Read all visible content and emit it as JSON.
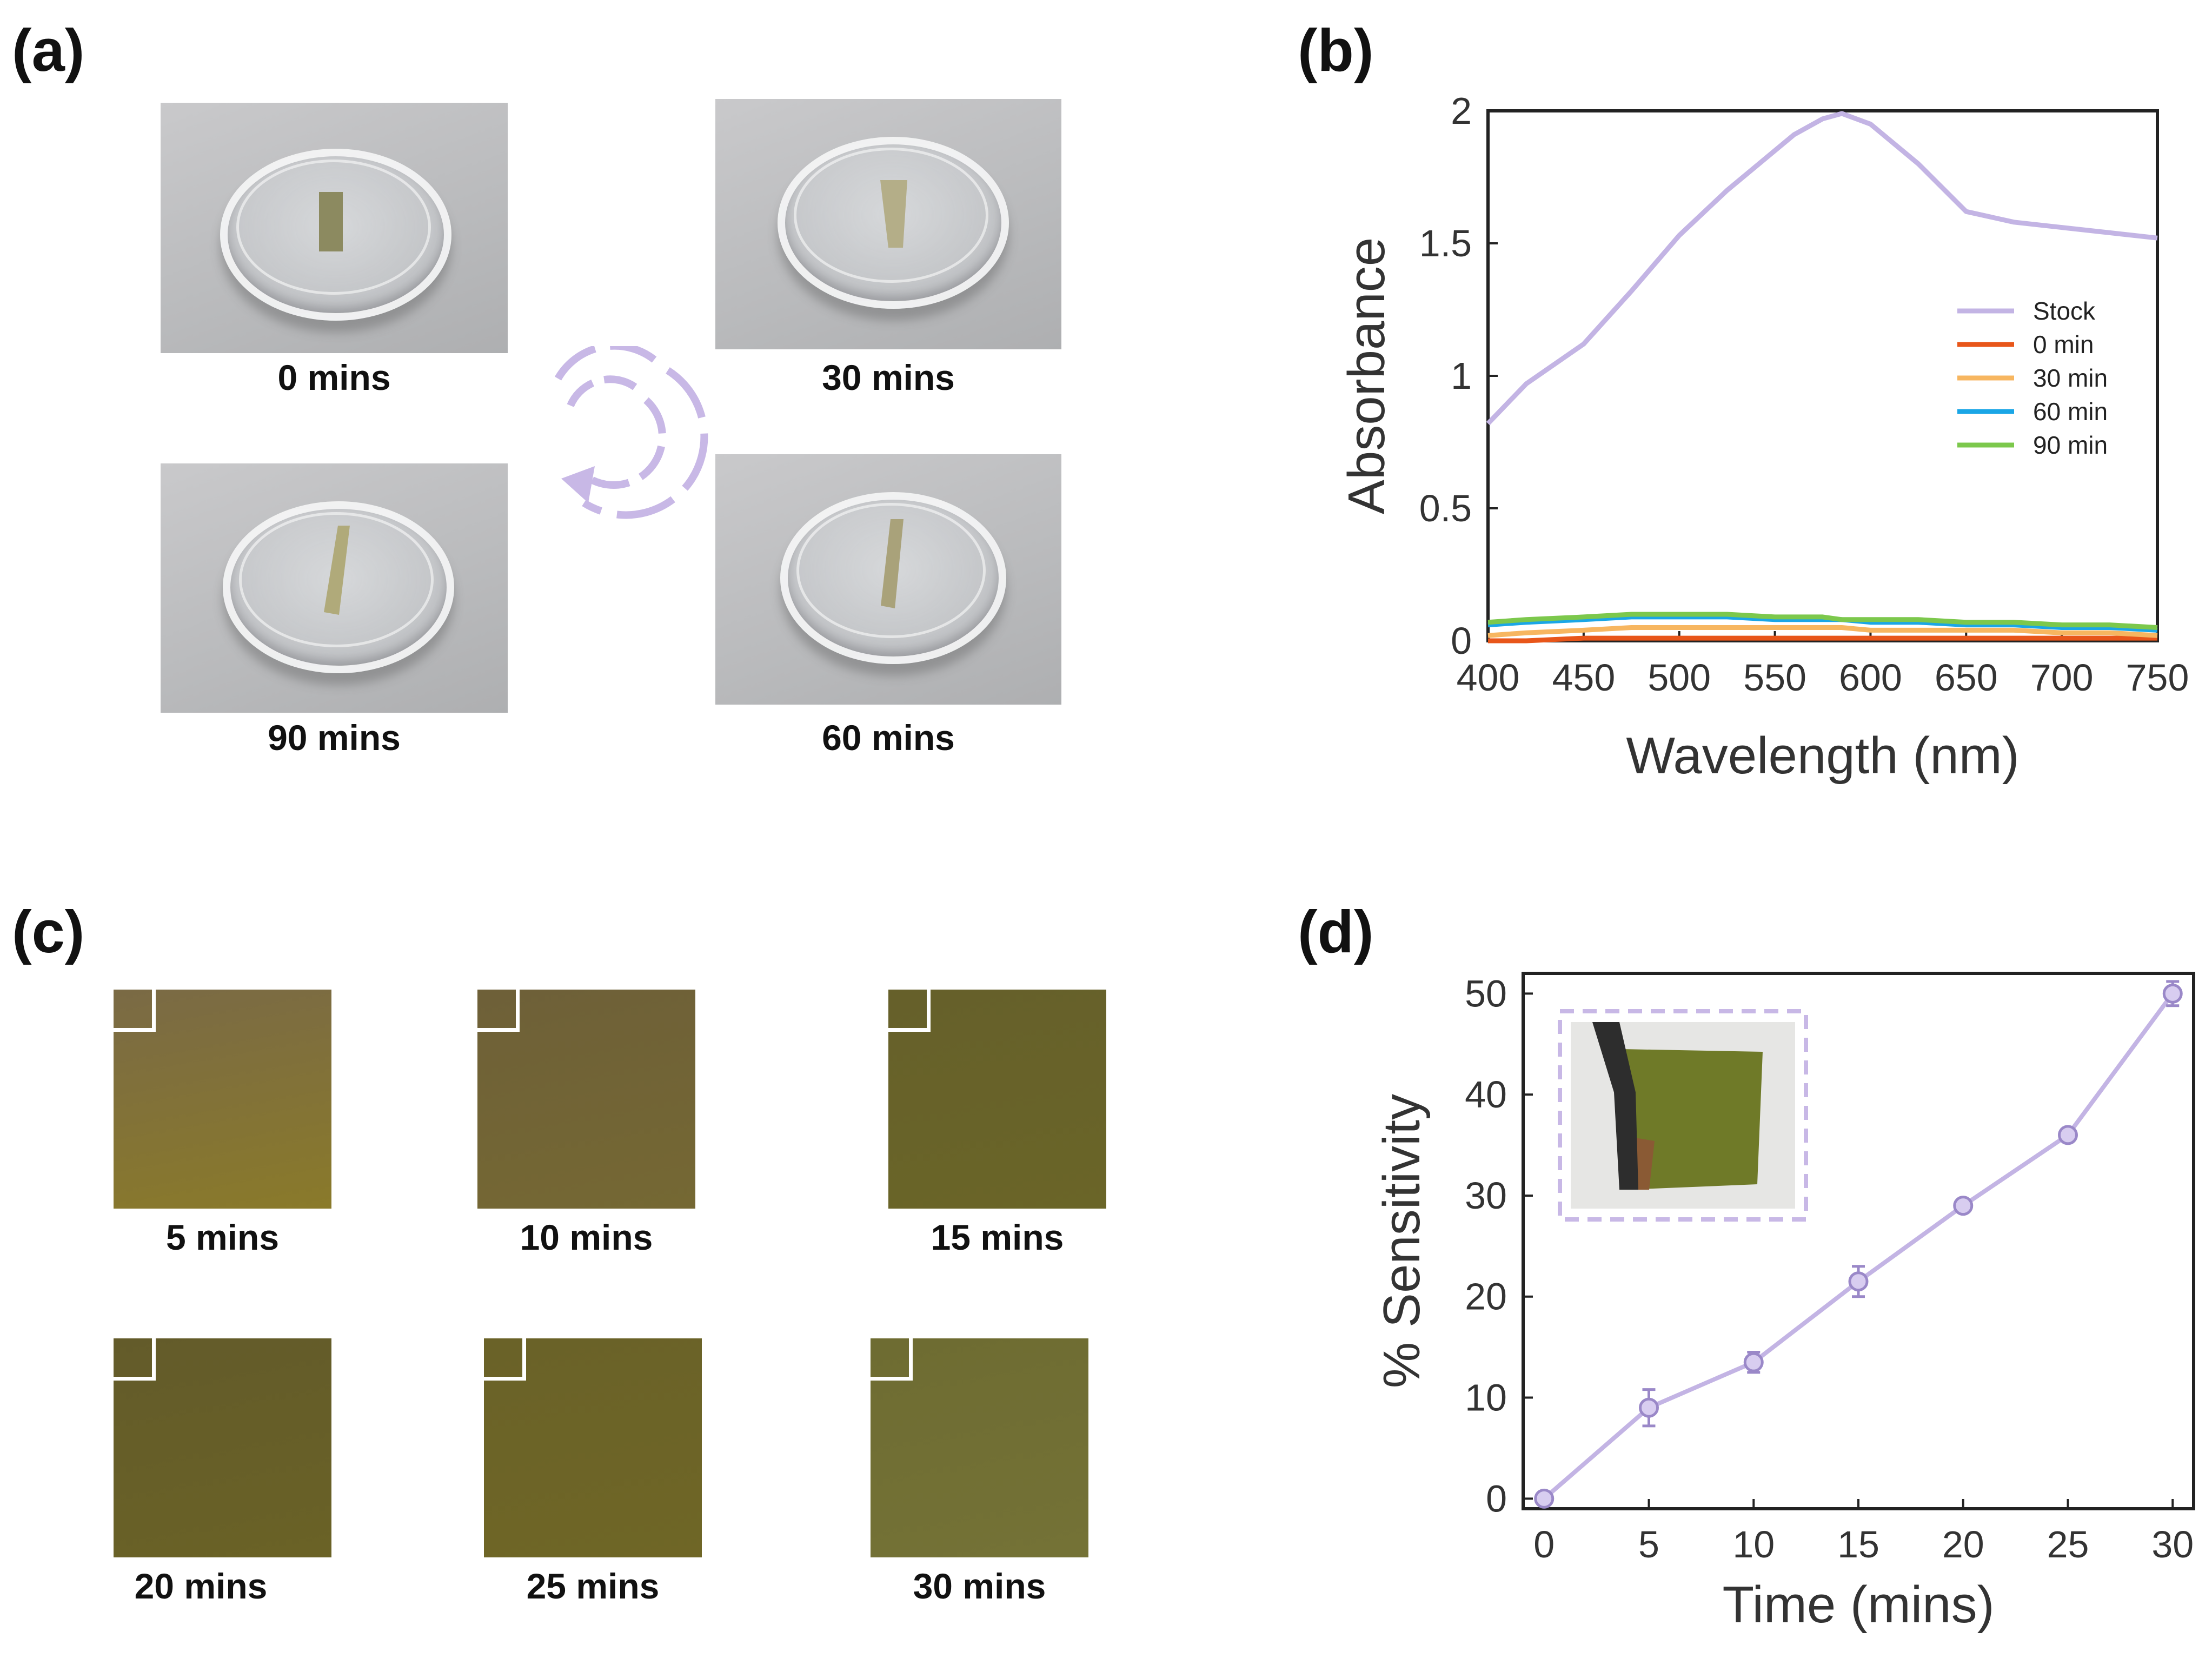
{
  "panels": {
    "a": "(a)",
    "b": "(b)",
    "c": "(c)",
    "d": "(d)"
  },
  "panel_a": {
    "photos": [
      {
        "caption": "0 mins"
      },
      {
        "caption": "30 mins"
      },
      {
        "caption": "90 mins"
      },
      {
        "caption": "60 mins"
      }
    ],
    "cycle_icon": "cycle-arrow-icon",
    "accent_color": "#c8b8e6"
  },
  "panel_c": {
    "swatches": [
      {
        "caption": "5 mins",
        "color_top": "#7a6a45",
        "color_bottom": "#8a7a2a"
      },
      {
        "caption": "10 mins",
        "color_top": "#6e6038",
        "color_bottom": "#756833"
      },
      {
        "caption": "15 mins",
        "color_top": "#66602a",
        "color_bottom": "#6a6528"
      },
      {
        "caption": "20 mins",
        "color_top": "#635b2a",
        "color_bottom": "#6a6226"
      },
      {
        "caption": "25 mins",
        "color_top": "#6a6228",
        "color_bottom": "#6f6626"
      },
      {
        "caption": "30 mins",
        "color_top": "#6e6c32",
        "color_bottom": "#747236"
      }
    ]
  },
  "chart_data": [
    {
      "type": "line",
      "panel": "(b)",
      "xlabel": "Wavelength (nm)",
      "ylabel": "Absorbance",
      "xlim": [
        400,
        750
      ],
      "ylim": [
        0,
        2
      ],
      "xticks": [
        "400",
        "450",
        "500",
        "550",
        "600",
        "650",
        "700",
        "750"
      ],
      "yticks": [
        "0",
        "0.5",
        "1",
        "1.5",
        "2"
      ],
      "legend_position": "right",
      "x": [
        400,
        420,
        450,
        475,
        500,
        525,
        550,
        560,
        575,
        585,
        600,
        625,
        650,
        675,
        700,
        725,
        750
      ],
      "series": [
        {
          "name": "Stock",
          "color": "#c3b4e4",
          "values": [
            0.82,
            0.97,
            1.12,
            1.32,
            1.53,
            1.7,
            1.85,
            1.91,
            1.97,
            1.99,
            1.95,
            1.8,
            1.62,
            1.58,
            1.56,
            1.54,
            1.52
          ]
        },
        {
          "name": "0 min",
          "color": "#e8561a",
          "values": [
            0.0,
            0.0,
            0.01,
            0.01,
            0.01,
            0.01,
            0.01,
            0.01,
            0.01,
            0.01,
            0.01,
            0.01,
            0.01,
            0.01,
            0.01,
            0.01,
            0.01
          ]
        },
        {
          "name": "30 min",
          "color": "#f7b660",
          "values": [
            0.02,
            0.03,
            0.04,
            0.05,
            0.05,
            0.05,
            0.05,
            0.05,
            0.05,
            0.05,
            0.04,
            0.04,
            0.04,
            0.04,
            0.03,
            0.03,
            0.02
          ]
        },
        {
          "name": "60 min",
          "color": "#1aa6e6",
          "values": [
            0.06,
            0.07,
            0.08,
            0.09,
            0.09,
            0.09,
            0.08,
            0.08,
            0.08,
            0.08,
            0.07,
            0.07,
            0.06,
            0.06,
            0.05,
            0.05,
            0.04
          ]
        },
        {
          "name": "90 min",
          "color": "#7cc84c",
          "values": [
            0.07,
            0.08,
            0.09,
            0.1,
            0.1,
            0.1,
            0.09,
            0.09,
            0.09,
            0.08,
            0.08,
            0.08,
            0.07,
            0.07,
            0.06,
            0.06,
            0.05
          ]
        }
      ]
    },
    {
      "type": "line",
      "panel": "(d)",
      "xlabel": "Time (mins)",
      "ylabel": "% Sensitivity",
      "xlim": [
        -1,
        31
      ],
      "ylim": [
        -1,
        52
      ],
      "xticks": [
        "0",
        "5",
        "10",
        "15",
        "20",
        "25",
        "30"
      ],
      "yticks": [
        "0",
        "10",
        "20",
        "30",
        "40",
        "50"
      ],
      "x": [
        0,
        5,
        10,
        15,
        20,
        25,
        30
      ],
      "series": [
        {
          "name": "% Sensitivity",
          "color": "#c3b4e4",
          "values": [
            0,
            9,
            13.5,
            21.5,
            29,
            36,
            50
          ],
          "errors": [
            0.3,
            1.8,
            1.0,
            1.5,
            0.5,
            0.5,
            1.2
          ]
        }
      ],
      "inset": "photo-of-film"
    }
  ]
}
